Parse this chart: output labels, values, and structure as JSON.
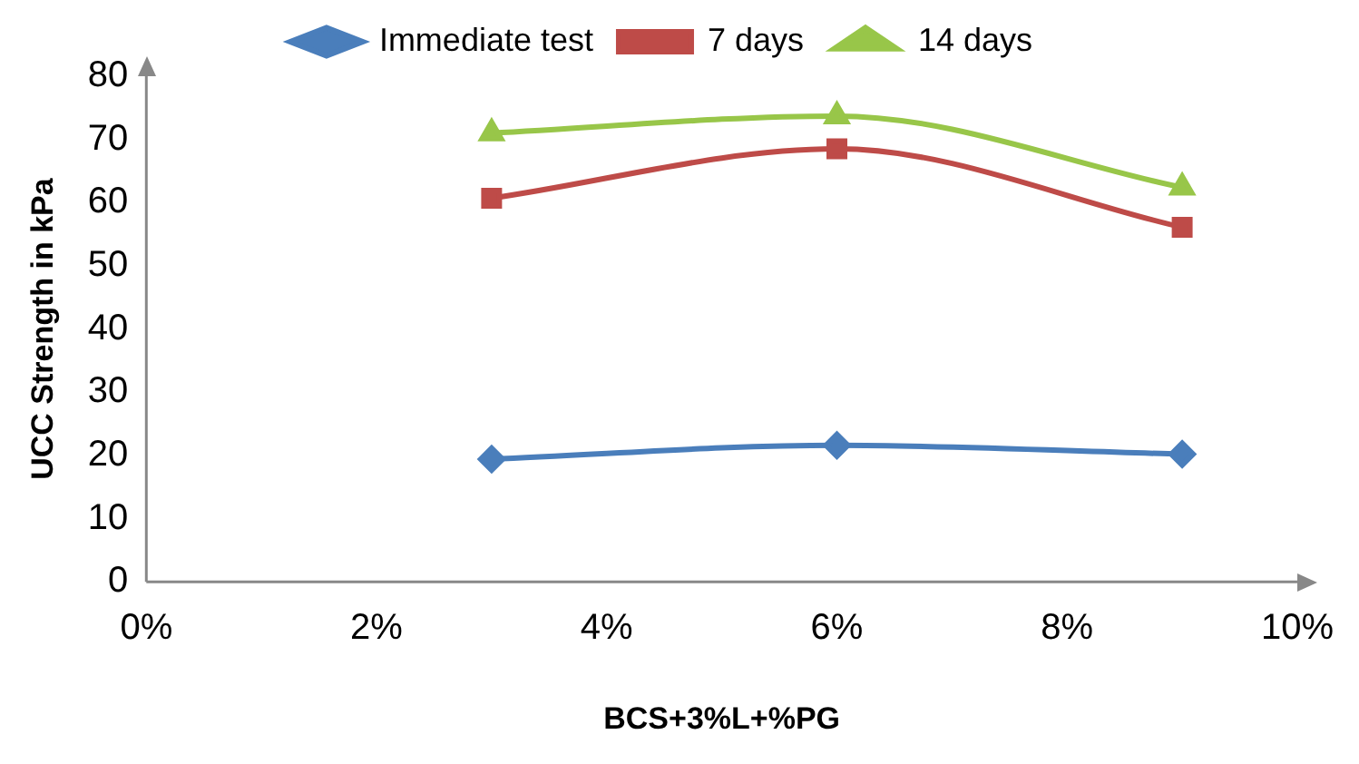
{
  "chart_data": {
    "type": "line",
    "xlabel": "BCS+3%L+%PG",
    "ylabel": "UCC Strength in kPa",
    "xlim": [
      0,
      10
    ],
    "xticks": [
      {
        "value": 0,
        "label": "0%"
      },
      {
        "value": 2,
        "label": "2%"
      },
      {
        "value": 4,
        "label": "4%"
      },
      {
        "value": 6,
        "label": "6%"
      },
      {
        "value": 8,
        "label": "8%"
      },
      {
        "value": 10,
        "label": "10%"
      }
    ],
    "ylim": [
      0,
      80
    ],
    "yticks": [
      0,
      10,
      20,
      30,
      40,
      50,
      60,
      70,
      80
    ],
    "x": [
      3,
      6,
      9
    ],
    "series": [
      {
        "name": "Immediate test",
        "color": "#4a7ebb",
        "marker": "diamond",
        "values": [
          19.4,
          21.6,
          20.2
        ]
      },
      {
        "name": "7 days",
        "color": "#be4b48",
        "marker": "square",
        "values": [
          60.7,
          68.5,
          56.1
        ]
      },
      {
        "name": "14 days",
        "color": "#98c649",
        "marker": "triangle",
        "values": [
          71,
          73.7,
          62.4
        ]
      }
    ],
    "grid": false,
    "legend": "top",
    "line_style": "solid"
  }
}
